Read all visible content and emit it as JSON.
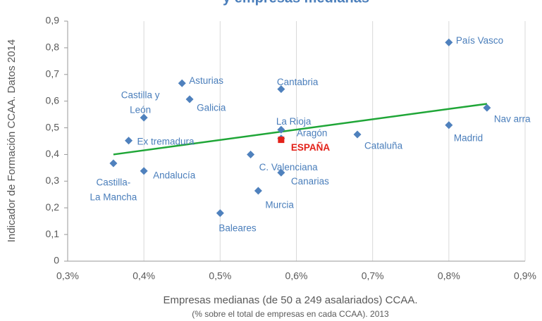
{
  "chart_data": {
    "type": "scatter",
    "title": "y empresas medianas",
    "x_label": [
      "Empresas medianas  (de 50 a 249 asalariados)  CCAA.",
      "(% sobre el total de empresas en cada CCAA). 2013"
    ],
    "y_label": "Indicador  de Formación  CCAA. Datos 2014",
    "xlim": [
      0.3,
      0.9
    ],
    "xticks": [
      {
        "value": 0.3,
        "label": "0,3%"
      },
      {
        "value": 0.4,
        "label": "0,4%"
      },
      {
        "value": 0.5,
        "label": "0,5%"
      },
      {
        "value": 0.6,
        "label": "0,6%"
      },
      {
        "value": 0.7,
        "label": "0,7%"
      },
      {
        "value": 0.8,
        "label": "0,8%"
      },
      {
        "value": 0.9,
        "label": "0,9%"
      }
    ],
    "ylim": [
      0,
      0.9
    ],
    "yticks": [
      0,
      {
        "value": 0.1,
        "label": "0,1"
      },
      {
        "value": 0.2,
        "label": "0,2"
      },
      {
        "value": 0.3,
        "label": "0,3"
      },
      {
        "value": 0.4,
        "label": "0,4"
      },
      {
        "value": 0.5,
        "label": "0,5"
      },
      {
        "value": 0.6,
        "label": "0,6"
      },
      {
        "value": 0.7,
        "label": "0,7"
      },
      {
        "value": 0.8,
        "label": "0,8"
      },
      {
        "value": 0.9,
        "label": "0,9"
      }
    ],
    "grid": true,
    "series": [
      {
        "color": "#4f81bd",
        "marker": "diamond",
        "x": [
          0.8,
          0.85,
          0.8,
          0.68,
          0.58,
          0.58,
          0.58,
          0.54,
          0.58,
          0.55,
          0.5,
          0.45,
          0.46,
          0.4,
          0.38,
          0.4,
          0.36
        ],
        "y": [
          0.82,
          0.575,
          0.51,
          0.475,
          0.645,
          0.493,
          0.46,
          0.4,
          0.332,
          0.264,
          0.18,
          0.667,
          0.607,
          0.538,
          0.452,
          0.338,
          0.367
        ],
        "labels": [
          [
            "País Vasco"
          ],
          [
            "Nav arra"
          ],
          [
            "Madrid"
          ],
          [
            "Cataluña"
          ],
          [
            "Cantabria"
          ],
          [
            "La Rioja"
          ],
          [
            "Aragón"
          ],
          [
            "C. Valenciana"
          ],
          [
            "Canarias"
          ],
          [
            "Murcia"
          ],
          [
            "Baleares"
          ],
          [
            "Asturias"
          ],
          [
            "Galicia"
          ],
          [
            "Castilla y",
            "León"
          ],
          [
            "Ex tremadura"
          ],
          [
            "Andalucía"
          ],
          [
            "Castilla-",
            "La Mancha"
          ]
        ]
      },
      {
        "color": "#e32119",
        "marker": "square",
        "bold": true,
        "x": [
          0.58
        ],
        "y": [
          0.455
        ],
        "labels": [
          [
            "ESPAÑA"
          ]
        ]
      }
    ],
    "trendline": {
      "color": "#1fa637",
      "x": [
        0.36,
        0.85
      ],
      "y": [
        0.4,
        0.59
      ]
    }
  }
}
